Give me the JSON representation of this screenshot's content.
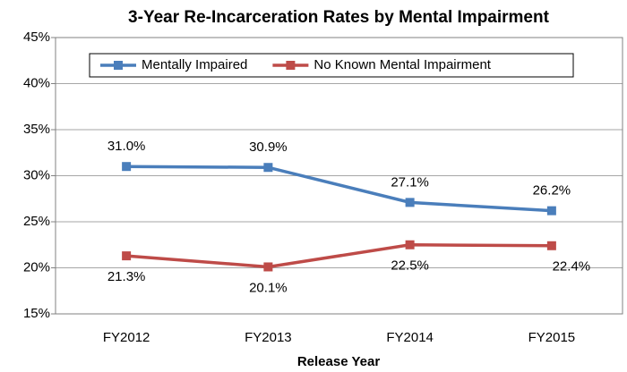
{
  "chart_data": {
    "type": "line",
    "title": "3-Year Re-Incarceration Rates by Mental Impairment",
    "x_label": "Release Year",
    "categories": [
      "FY2012",
      "FY2013",
      "FY2014",
      "FY2015"
    ],
    "series": [
      {
        "name": "Mentally Impaired",
        "color": "#4a7ebb",
        "values": [
          31.0,
          30.9,
          27.1,
          26.2
        ],
        "value_labels": [
          "31.0%",
          "30.9%",
          "27.1%",
          "26.2%"
        ]
      },
      {
        "name": "No Known Mental Impairment",
        "color": "#be4b48",
        "values": [
          21.3,
          20.1,
          22.5,
          22.4
        ],
        "value_labels": [
          "21.3%",
          "20.1%",
          "22.5%",
          "22.4%"
        ]
      }
    ],
    "ylim": [
      15,
      45
    ],
    "yticks": [
      {
        "value": 15,
        "label": "15%"
      },
      {
        "value": 20,
        "label": "20%"
      },
      {
        "value": 25,
        "label": "25%"
      },
      {
        "value": 30,
        "label": "30%"
      },
      {
        "value": 35,
        "label": "35%"
      },
      {
        "value": 40,
        "label": "40%"
      },
      {
        "value": 45,
        "label": "45%"
      }
    ],
    "grid": true,
    "legend": "top"
  }
}
